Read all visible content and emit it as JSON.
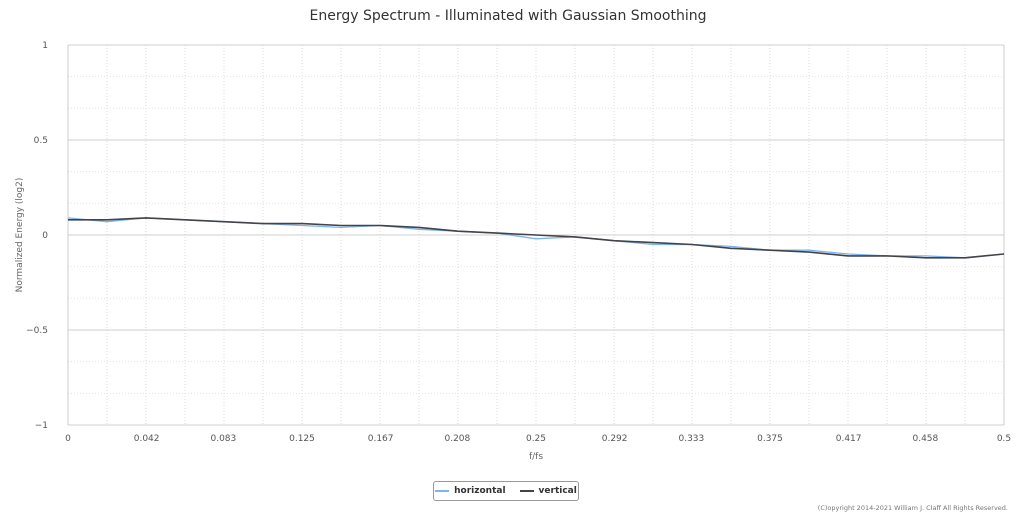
{
  "chart_data": {
    "type": "line",
    "title": "Energy Spectrum - Illuminated with Gaussian Smoothing",
    "xlabel": "f/fs",
    "ylabel": "Normalized Energy (log2)",
    "xlim": [
      0,
      0.5
    ],
    "ylim": [
      -1,
      1
    ],
    "x_ticks": [
      0,
      0.042,
      0.083,
      0.125,
      0.167,
      0.208,
      0.25,
      0.292,
      0.333,
      0.375,
      0.417,
      0.458,
      0.5
    ],
    "x_tick_labels": [
      "0",
      "0.042",
      "0.083",
      "0.125",
      "0.167",
      "0.208",
      "0.25",
      "0.292",
      "0.333",
      "0.375",
      "0.417",
      "0.458",
      "0.5"
    ],
    "y_ticks": [
      1,
      0.5,
      0,
      -0.5,
      -1
    ],
    "y_tick_labels": [
      "1",
      "0.5",
      "0",
      "−0.5",
      "−1"
    ],
    "grid": true,
    "legend_position": "bottom-center",
    "series": [
      {
        "name": "horizontal",
        "color": "#7cb5ec",
        "x": [
          0,
          0.0208,
          0.0417,
          0.0625,
          0.0833,
          0.1042,
          0.125,
          0.1458,
          0.1667,
          0.1875,
          0.2083,
          0.2292,
          0.25,
          0.2708,
          0.2917,
          0.3125,
          0.3333,
          0.3542,
          0.375,
          0.3958,
          0.4167,
          0.4375,
          0.4583,
          0.4792,
          0.5
        ],
        "y": [
          0.09,
          0.07,
          0.09,
          0.08,
          0.07,
          0.06,
          0.05,
          0.04,
          0.05,
          0.03,
          0.02,
          0.01,
          -0.02,
          -0.01,
          -0.03,
          -0.05,
          -0.05,
          -0.06,
          -0.08,
          -0.08,
          -0.1,
          -0.11,
          -0.11,
          -0.12,
          -0.1
        ]
      },
      {
        "name": "vertical",
        "color": "#434348",
        "x": [
          0,
          0.0208,
          0.0417,
          0.0625,
          0.0833,
          0.1042,
          0.125,
          0.1458,
          0.1667,
          0.1875,
          0.2083,
          0.2292,
          0.25,
          0.2708,
          0.2917,
          0.3125,
          0.3333,
          0.3542,
          0.375,
          0.3958,
          0.4167,
          0.4375,
          0.4583,
          0.4792,
          0.5
        ],
        "y": [
          0.08,
          0.08,
          0.09,
          0.08,
          0.07,
          0.06,
          0.06,
          0.05,
          0.05,
          0.04,
          0.02,
          0.01,
          0.0,
          -0.01,
          -0.03,
          -0.04,
          -0.05,
          -0.07,
          -0.08,
          -0.09,
          -0.11,
          -0.11,
          -0.12,
          -0.12,
          -0.1
        ]
      }
    ]
  },
  "footer": {
    "copyright": "(C)opyright 2014-2021 William J. Claff All Rights Reserved."
  }
}
